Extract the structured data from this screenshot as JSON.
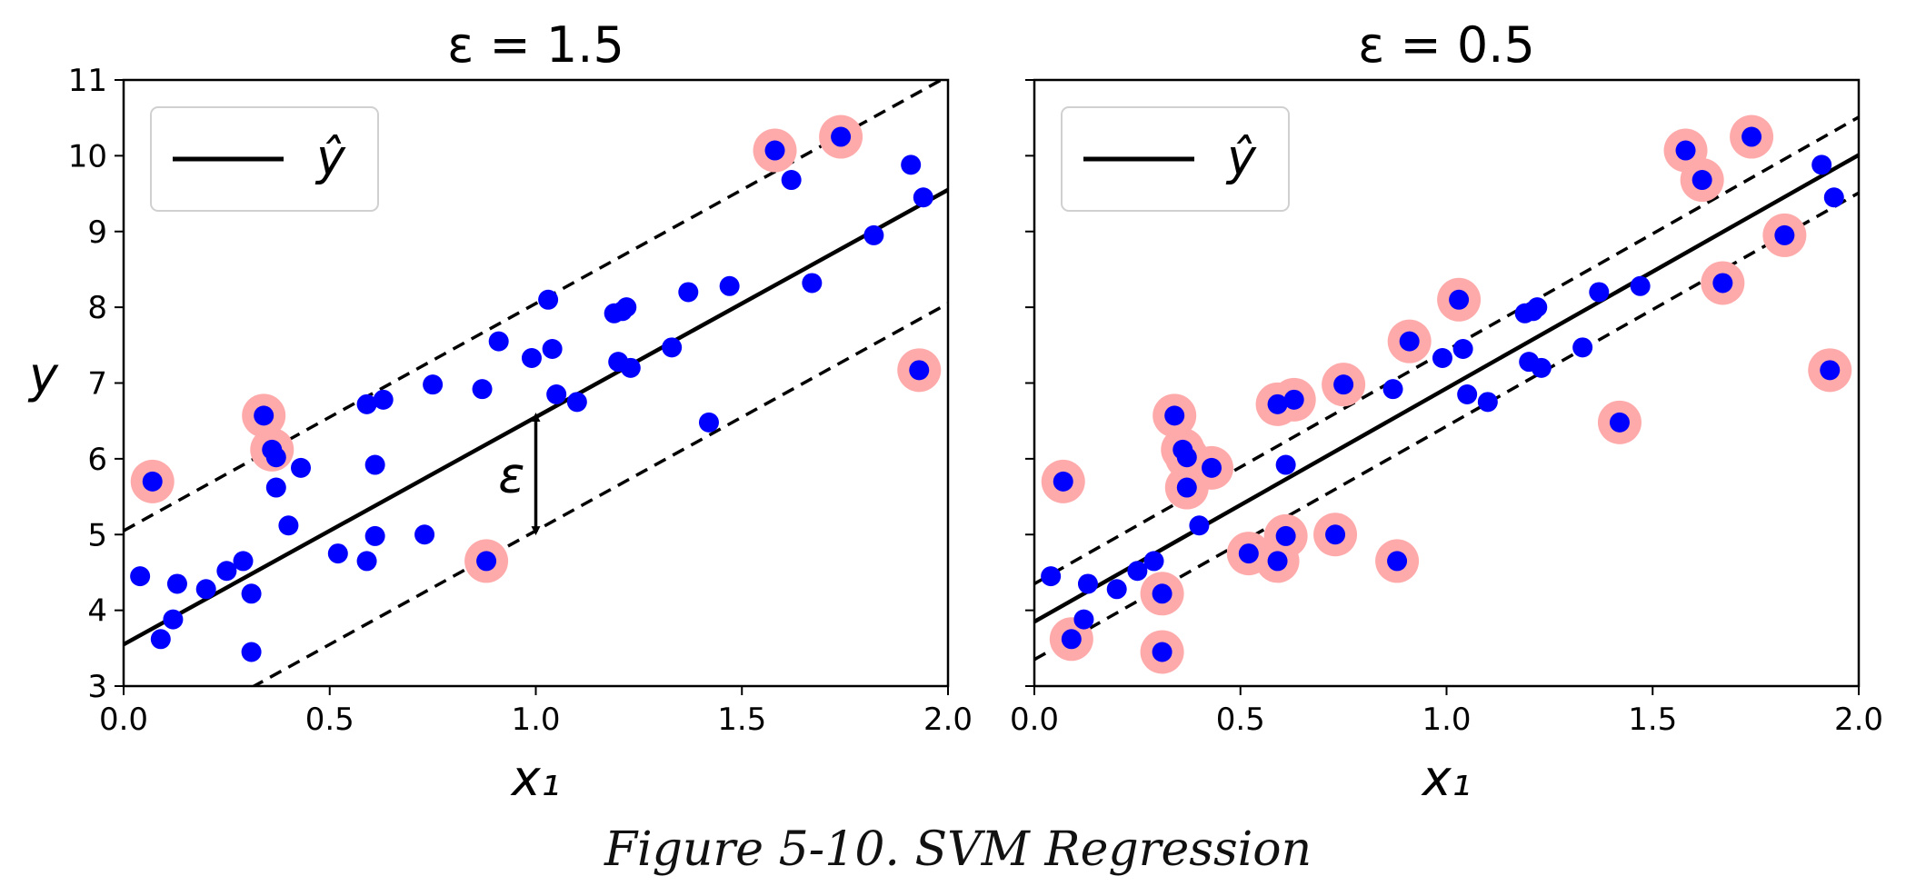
{
  "caption": "Figure 5-10. SVM Regression",
  "colors": {
    "point": "#0000ff",
    "support_vector": "#ffaaaa",
    "line": "#000000"
  },
  "chart_data": [
    {
      "type": "scatter",
      "title": "ε = 1.5",
      "xlabel": "x₁",
      "ylabel": "y",
      "xlim": [
        0.0,
        2.0
      ],
      "ylim": [
        3,
        11
      ],
      "x_ticks": [
        "0.0",
        "0.5",
        "1.0",
        "1.5",
        "2.0"
      ],
      "y_ticks": [
        "3",
        "4",
        "5",
        "6",
        "7",
        "8",
        "9",
        "10",
        "11"
      ],
      "show_y_tick_labels": true,
      "legend": {
        "entries": [
          "ŷ"
        ],
        "location": "upper-left"
      },
      "epsilon": 1.5,
      "regression_line": {
        "intercept": 3.55,
        "slope": 3.0
      },
      "margin_lines": [
        {
          "intercept": 5.05,
          "slope": 3.0
        },
        {
          "intercept": 2.05,
          "slope": 3.0
        }
      ],
      "annotation": {
        "text": "ε",
        "x": 1.0,
        "y_from": 5.05,
        "y_to": 6.55
      },
      "points": [
        {
          "x": 0.04,
          "y": 4.45
        },
        {
          "x": 0.07,
          "y": 5.7,
          "sv": true
        },
        {
          "x": 0.09,
          "y": 3.62
        },
        {
          "x": 0.12,
          "y": 3.88
        },
        {
          "x": 0.13,
          "y": 4.35
        },
        {
          "x": 0.2,
          "y": 4.28
        },
        {
          "x": 0.25,
          "y": 4.52
        },
        {
          "x": 0.29,
          "y": 4.65
        },
        {
          "x": 0.31,
          "y": 4.22
        },
        {
          "x": 0.31,
          "y": 3.45
        },
        {
          "x": 0.34,
          "y": 6.57,
          "sv": true
        },
        {
          "x": 0.36,
          "y": 6.12,
          "sv": true
        },
        {
          "x": 0.37,
          "y": 6.02
        },
        {
          "x": 0.37,
          "y": 5.62
        },
        {
          "x": 0.4,
          "y": 5.12
        },
        {
          "x": 0.43,
          "y": 5.88
        },
        {
          "x": 0.52,
          "y": 4.75
        },
        {
          "x": 0.59,
          "y": 4.65
        },
        {
          "x": 0.59,
          "y": 6.72
        },
        {
          "x": 0.61,
          "y": 5.92
        },
        {
          "x": 0.61,
          "y": 4.98
        },
        {
          "x": 0.63,
          "y": 6.78
        },
        {
          "x": 0.73,
          "y": 5.0
        },
        {
          "x": 0.75,
          "y": 6.98
        },
        {
          "x": 0.87,
          "y": 6.92
        },
        {
          "x": 0.88,
          "y": 4.65,
          "sv": true
        },
        {
          "x": 0.91,
          "y": 7.55
        },
        {
          "x": 0.99,
          "y": 7.33
        },
        {
          "x": 1.03,
          "y": 8.1
        },
        {
          "x": 1.04,
          "y": 7.45
        },
        {
          "x": 1.05,
          "y": 6.85
        },
        {
          "x": 1.1,
          "y": 6.75
        },
        {
          "x": 1.19,
          "y": 7.92
        },
        {
          "x": 1.2,
          "y": 7.28
        },
        {
          "x": 1.21,
          "y": 7.95
        },
        {
          "x": 1.22,
          "y": 8.0
        },
        {
          "x": 1.23,
          "y": 7.2
        },
        {
          "x": 1.33,
          "y": 7.47
        },
        {
          "x": 1.37,
          "y": 8.2
        },
        {
          "x": 1.42,
          "y": 6.48
        },
        {
          "x": 1.47,
          "y": 8.28
        },
        {
          "x": 1.58,
          "y": 10.07,
          "sv": true
        },
        {
          "x": 1.62,
          "y": 9.68
        },
        {
          "x": 1.67,
          "y": 8.32
        },
        {
          "x": 1.74,
          "y": 10.25,
          "sv": true
        },
        {
          "x": 1.82,
          "y": 8.95
        },
        {
          "x": 1.91,
          "y": 9.88
        },
        {
          "x": 1.93,
          "y": 7.17,
          "sv": true
        },
        {
          "x": 1.94,
          "y": 9.45
        }
      ]
    },
    {
      "type": "scatter",
      "title": "ε = 0.5",
      "xlabel": "x₁",
      "ylabel": "",
      "xlim": [
        0.0,
        2.0
      ],
      "ylim": [
        3,
        11
      ],
      "x_ticks": [
        "0.0",
        "0.5",
        "1.0",
        "1.5",
        "2.0"
      ],
      "y_ticks": [
        "3",
        "4",
        "5",
        "6",
        "7",
        "8",
        "9",
        "10",
        "11"
      ],
      "show_y_tick_labels": false,
      "legend": {
        "entries": [
          "ŷ"
        ],
        "location": "upper-left"
      },
      "epsilon": 0.5,
      "regression_line": {
        "intercept": 3.85,
        "slope": 3.08
      },
      "margin_lines": [
        {
          "intercept": 4.35,
          "slope": 3.08
        },
        {
          "intercept": 3.35,
          "slope": 3.08
        }
      ],
      "points": [
        {
          "x": 0.04,
          "y": 4.45
        },
        {
          "x": 0.07,
          "y": 5.7,
          "sv": true
        },
        {
          "x": 0.09,
          "y": 3.62,
          "sv": true
        },
        {
          "x": 0.12,
          "y": 3.88
        },
        {
          "x": 0.13,
          "y": 4.35
        },
        {
          "x": 0.2,
          "y": 4.28
        },
        {
          "x": 0.25,
          "y": 4.52
        },
        {
          "x": 0.29,
          "y": 4.65
        },
        {
          "x": 0.31,
          "y": 4.22,
          "sv": true
        },
        {
          "x": 0.31,
          "y": 3.45,
          "sv": true
        },
        {
          "x": 0.34,
          "y": 6.57,
          "sv": true
        },
        {
          "x": 0.36,
          "y": 6.12,
          "sv": true
        },
        {
          "x": 0.37,
          "y": 6.02,
          "sv": true
        },
        {
          "x": 0.37,
          "y": 5.62,
          "sv": true
        },
        {
          "x": 0.4,
          "y": 5.12
        },
        {
          "x": 0.43,
          "y": 5.88,
          "sv": true
        },
        {
          "x": 0.52,
          "y": 4.75,
          "sv": true
        },
        {
          "x": 0.59,
          "y": 4.65,
          "sv": true
        },
        {
          "x": 0.59,
          "y": 6.72,
          "sv": true
        },
        {
          "x": 0.61,
          "y": 5.92
        },
        {
          "x": 0.61,
          "y": 4.98,
          "sv": true
        },
        {
          "x": 0.63,
          "y": 6.78,
          "sv": true
        },
        {
          "x": 0.73,
          "y": 5.0,
          "sv": true
        },
        {
          "x": 0.75,
          "y": 6.98,
          "sv": true
        },
        {
          "x": 0.87,
          "y": 6.92
        },
        {
          "x": 0.88,
          "y": 4.65,
          "sv": true
        },
        {
          "x": 0.91,
          "y": 7.55,
          "sv": true
        },
        {
          "x": 0.99,
          "y": 7.33
        },
        {
          "x": 1.03,
          "y": 8.1,
          "sv": true
        },
        {
          "x": 1.04,
          "y": 7.45
        },
        {
          "x": 1.05,
          "y": 6.85
        },
        {
          "x": 1.1,
          "y": 6.75
        },
        {
          "x": 1.19,
          "y": 7.92
        },
        {
          "x": 1.2,
          "y": 7.28
        },
        {
          "x": 1.21,
          "y": 7.95
        },
        {
          "x": 1.22,
          "y": 8.0
        },
        {
          "x": 1.23,
          "y": 7.2
        },
        {
          "x": 1.33,
          "y": 7.47
        },
        {
          "x": 1.37,
          "y": 8.2
        },
        {
          "x": 1.42,
          "y": 6.48,
          "sv": true
        },
        {
          "x": 1.47,
          "y": 8.28
        },
        {
          "x": 1.58,
          "y": 10.07,
          "sv": true
        },
        {
          "x": 1.62,
          "y": 9.68,
          "sv": true
        },
        {
          "x": 1.67,
          "y": 8.32,
          "sv": true
        },
        {
          "x": 1.74,
          "y": 10.25,
          "sv": true
        },
        {
          "x": 1.82,
          "y": 8.95,
          "sv": true
        },
        {
          "x": 1.91,
          "y": 9.88
        },
        {
          "x": 1.93,
          "y": 7.17,
          "sv": true
        },
        {
          "x": 1.94,
          "y": 9.45
        }
      ]
    }
  ]
}
